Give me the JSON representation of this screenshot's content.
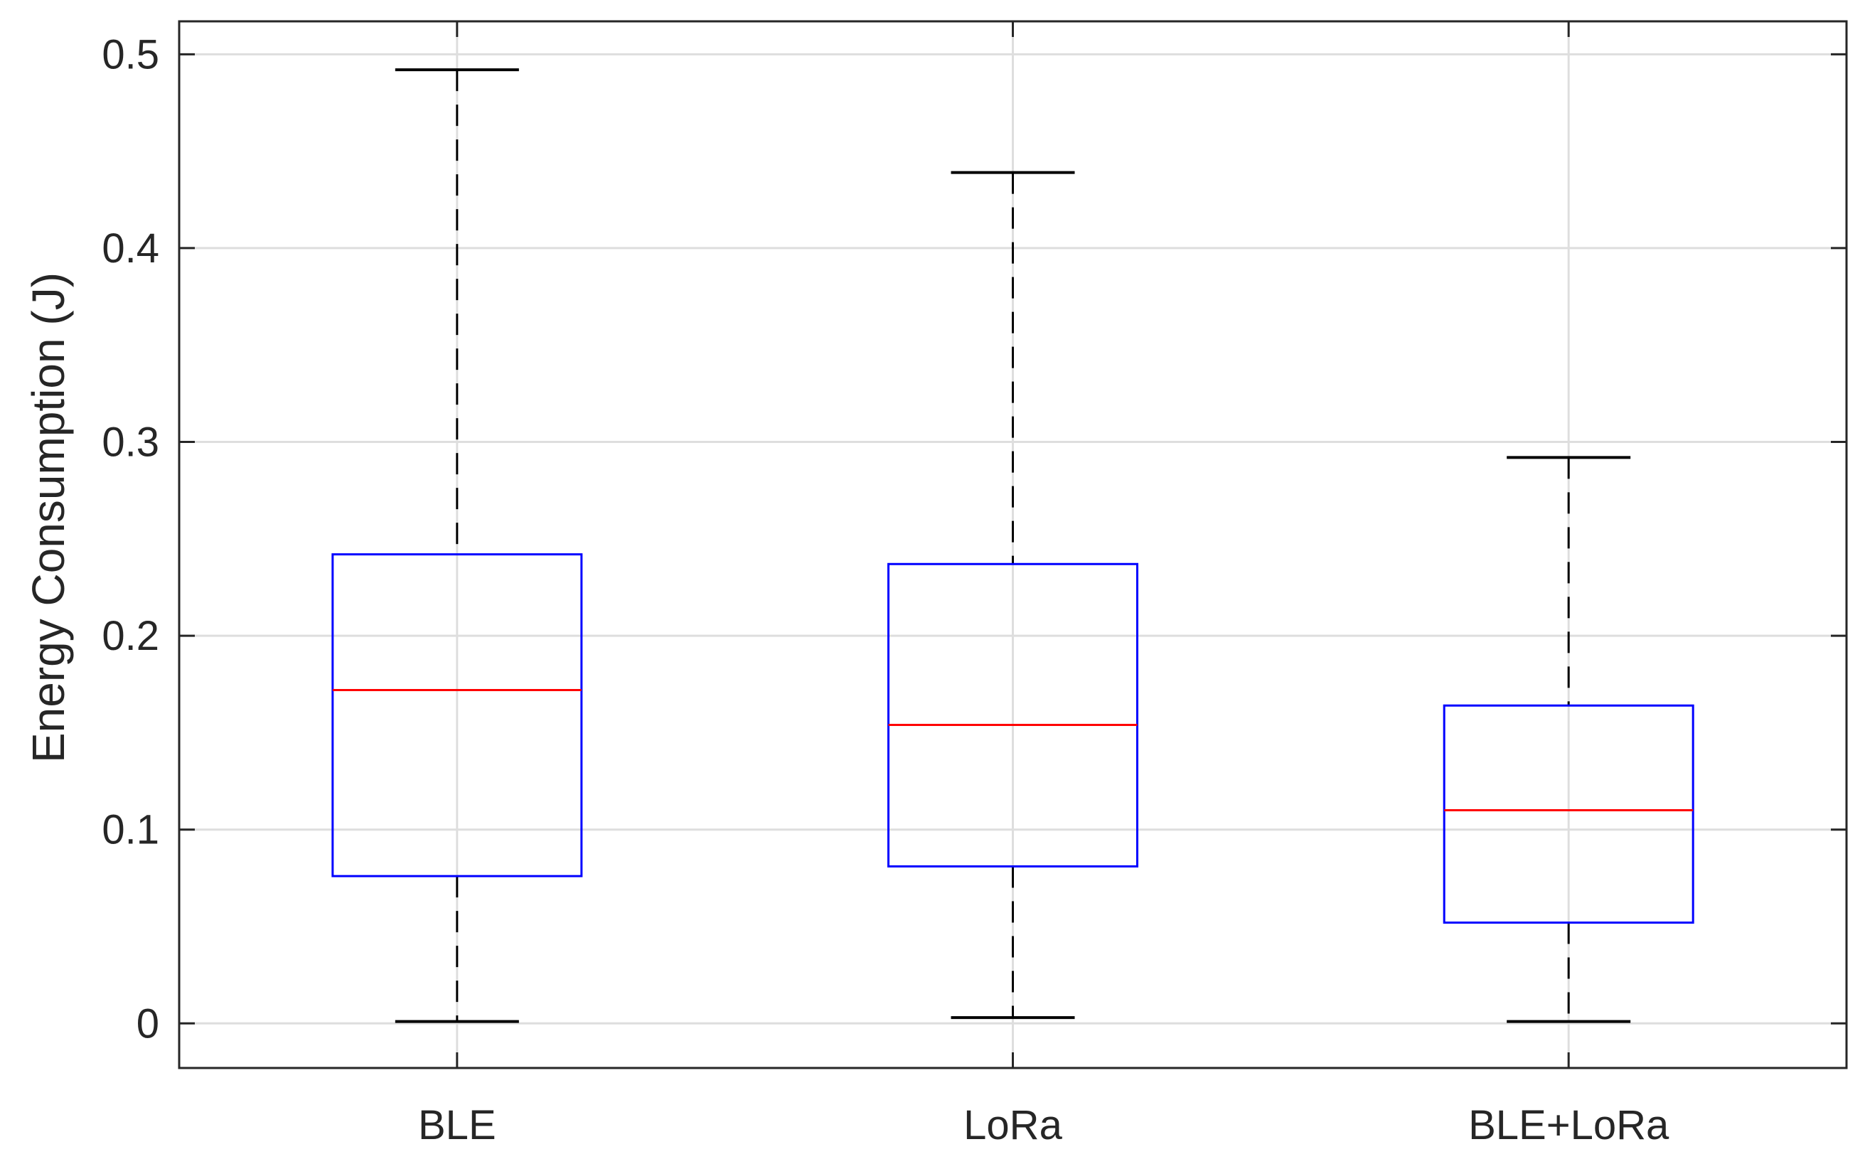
{
  "chart_data": {
    "type": "box",
    "title": "",
    "xlabel": "",
    "ylabel": "Energy Consumption (J)",
    "ylim": [
      -0.023,
      0.517
    ],
    "y_ticks": [
      "0",
      "0.1",
      "0.2",
      "0.3",
      "0.4",
      "0.5"
    ],
    "categories": [
      "BLE",
      "LoRa",
      "BLE+LoRa"
    ],
    "boxes": [
      {
        "category": "BLE",
        "whisker_low": 0.001,
        "q1": 0.076,
        "median": 0.172,
        "q3": 0.242,
        "whisker_high": 0.492
      },
      {
        "category": "LoRa",
        "whisker_low": 0.003,
        "q1": 0.081,
        "median": 0.154,
        "q3": 0.237,
        "whisker_high": 0.439
      },
      {
        "category": "BLE+LoRa",
        "whisker_low": 0.001,
        "q1": 0.052,
        "median": 0.11,
        "q3": 0.164,
        "whisker_high": 0.292
      }
    ],
    "grid": true,
    "legend": "none",
    "colors": {
      "box": "#0000ff",
      "median": "#ff0000",
      "whisker": "#000000",
      "grid": "#dedede",
      "axes": "#262626"
    }
  }
}
